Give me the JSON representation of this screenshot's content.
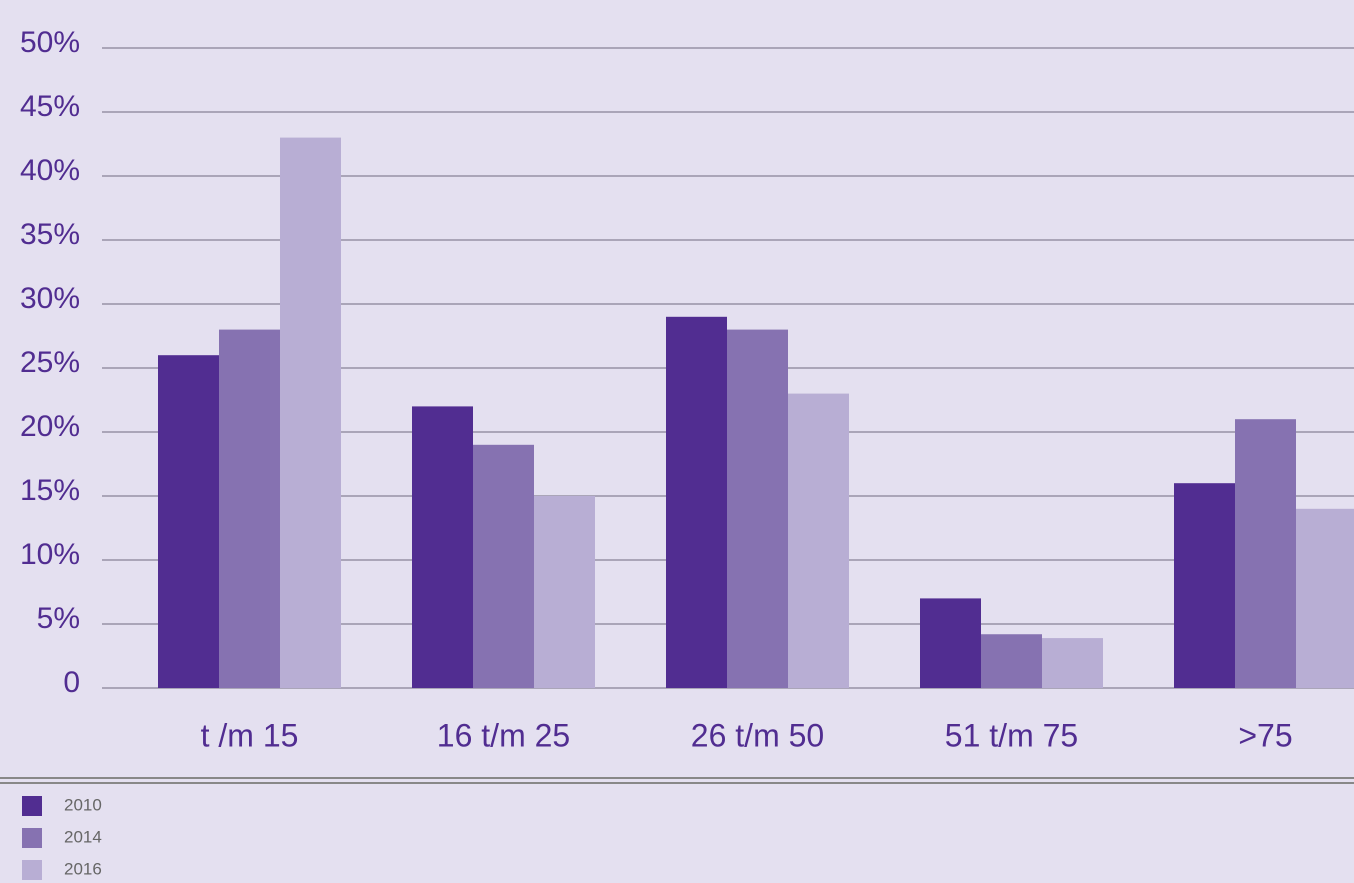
{
  "chart_data": {
    "type": "bar",
    "categories": [
      "t /m 15",
      "16 t/m 25",
      "26 t/m 50",
      "51 t/m 75",
      ">75"
    ],
    "series": [
      {
        "name": "2010",
        "color": "#512d91",
        "values": [
          26,
          22,
          29,
          7,
          16
        ]
      },
      {
        "name": "2014",
        "color": "#8672b1",
        "values": [
          28,
          19,
          28,
          4.2,
          21
        ]
      },
      {
        "name": "2016",
        "color": "#b8aed4",
        "values": [
          43,
          15,
          23,
          3.9,
          14
        ]
      }
    ],
    "ylim": [
      0,
      50
    ],
    "yticks": [
      0,
      {
        "value": 5,
        "label": "5%"
      },
      {
        "value": 10,
        "label": "10%"
      },
      {
        "value": 15,
        "label": "15%"
      },
      {
        "value": 20,
        "label": "20%"
      },
      {
        "value": 25,
        "label": "25%"
      },
      {
        "value": 30,
        "label": "30%"
      },
      {
        "value": 35,
        "label": "35%"
      },
      {
        "value": 40,
        "label": "40%"
      },
      {
        "value": 45,
        "label": "45%"
      },
      {
        "value": 50,
        "label": "50%"
      }
    ],
    "grid": true,
    "legend": "bottom-left"
  }
}
